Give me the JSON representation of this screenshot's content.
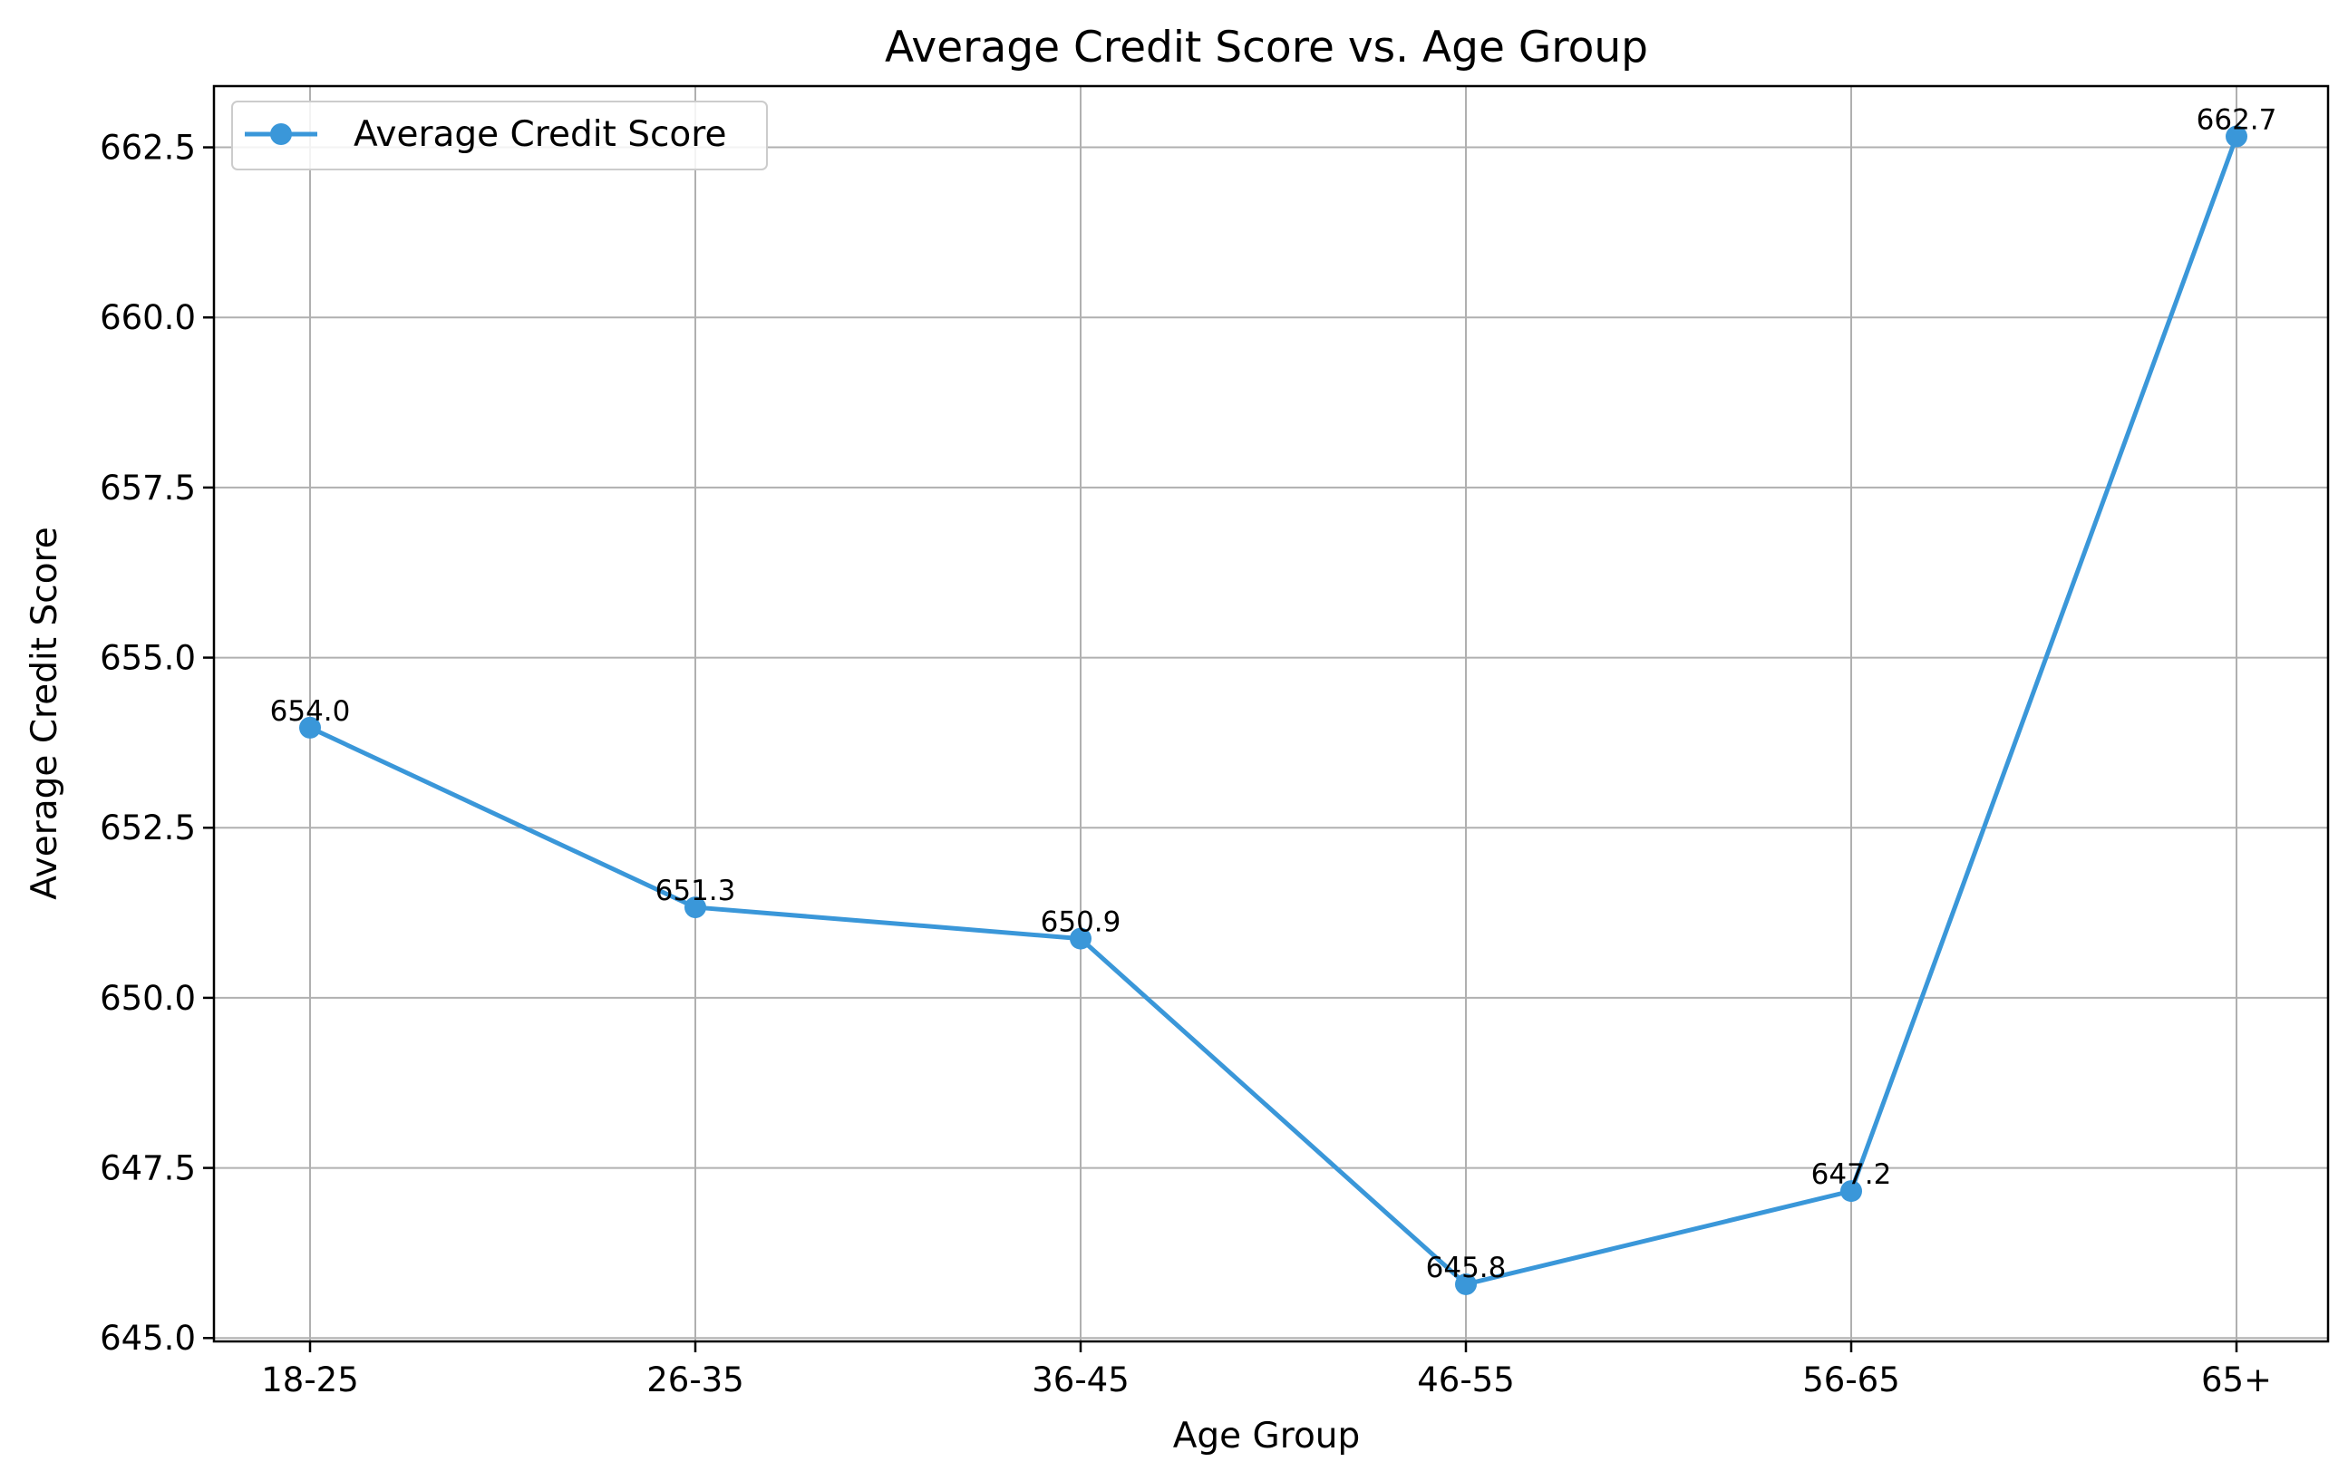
{
  "chart_data": {
    "type": "line",
    "title": "Average Credit Score vs. Age Group",
    "xlabel": "Age Group",
    "ylabel": "Average Credit Score",
    "categories": [
      "18-25",
      "26-35",
      "36-45",
      "46-55",
      "56-65",
      "65+"
    ],
    "series": [
      {
        "name": "Average Credit Score",
        "values": [
          653.97,
          651.33,
          650.87,
          645.79,
          647.16,
          662.66
        ],
        "labels": [
          "654.0",
          "651.3",
          "650.9",
          "645.8",
          "647.2",
          "662.7"
        ],
        "color": "#3a97d9"
      }
    ],
    "ylim": [
      644.95,
      663.4
    ],
    "yticks": [
      "645.0",
      "647.5",
      "650.0",
      "652.5",
      "655.0",
      "657.5",
      "660.0",
      "662.5"
    ],
    "grid": true,
    "legend_position": "top-left"
  }
}
